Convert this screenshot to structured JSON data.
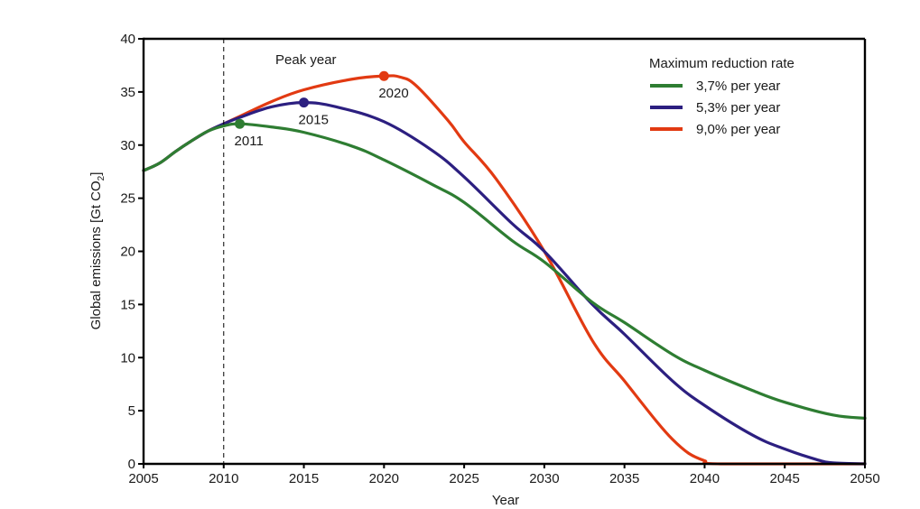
{
  "chart_data": {
    "type": "line",
    "title": "",
    "xlabel": "Year",
    "ylabel": "Global emissions [Gt CO2]",
    "ylabel_main": "Global emissions [Gt CO",
    "ylabel_sub": "2",
    "ylabel_close": "]",
    "xlim": [
      2005,
      2050
    ],
    "ylim": [
      0,
      40
    ],
    "x_ticks": [
      2005,
      2010,
      2015,
      2020,
      2025,
      2030,
      2035,
      2040,
      2045,
      2050
    ],
    "x_tick_labels": [
      "2005",
      "2010",
      "2015",
      "2020",
      "2025",
      "2030",
      "2035",
      "2040",
      "2045",
      "2050"
    ],
    "y_ticks": [
      0,
      5,
      10,
      15,
      20,
      25,
      30,
      35,
      40
    ],
    "y_tick_labels": [
      "0",
      "5",
      "10",
      "15",
      "20",
      "25",
      "30",
      "35",
      "40"
    ],
    "grid": false,
    "reference_line": {
      "x": 2010,
      "style": "dashed"
    },
    "annotations": {
      "peak_title": "Peak year",
      "peaks": [
        {
          "series": 0,
          "x": 2011,
          "y": 32.0,
          "label": "2011"
        },
        {
          "series": 1,
          "x": 2015,
          "y": 34.0,
          "label": "2015"
        },
        {
          "series": 2,
          "x": 2020,
          "y": 36.5,
          "label": "2020"
        }
      ]
    },
    "legend": {
      "title": "Maximum reduction rate",
      "position": "top-right"
    },
    "series": [
      {
        "name": "3,7% per year",
        "color": "#2e7d32",
        "x": [
          2005,
          2006,
          2007,
          2008,
          2009,
          2010,
          2011,
          2013,
          2015,
          2018,
          2020,
          2023,
          2025,
          2028,
          2030,
          2033,
          2035,
          2038,
          2040,
          2043,
          2045,
          2048,
          2050
        ],
        "y": [
          27.6,
          28.3,
          29.4,
          30.4,
          31.3,
          31.8,
          32.0,
          31.7,
          31.2,
          29.9,
          28.6,
          26.3,
          24.6,
          21.0,
          19.0,
          15.2,
          13.3,
          10.3,
          8.8,
          6.9,
          5.8,
          4.6,
          4.3
        ]
      },
      {
        "name": "5,3% per year",
        "color": "#2c1f80",
        "x": [
          2005,
          2006,
          2007,
          2008,
          2009,
          2010,
          2011,
          2013,
          2015,
          2017,
          2020,
          2023,
          2025,
          2028,
          2030,
          2033,
          2035,
          2038,
          2040,
          2043,
          2045,
          2047,
          2048,
          2050
        ],
        "y": [
          27.6,
          28.3,
          29.4,
          30.4,
          31.3,
          32.0,
          32.6,
          33.6,
          34.0,
          33.6,
          32.2,
          29.5,
          27.0,
          22.6,
          20.0,
          15.0,
          12.2,
          7.8,
          5.5,
          2.7,
          1.4,
          0.4,
          0.1,
          0.0
        ]
      },
      {
        "name": "9,0% per year",
        "color": "#e23a12",
        "x": [
          2005,
          2006,
          2007,
          2008,
          2009,
          2010,
          2011,
          2013,
          2015,
          2018,
          2020,
          2021,
          2022,
          2024,
          2025,
          2027,
          2030,
          2033,
          2035,
          2037,
          2038,
          2039,
          2040,
          2041,
          2050
        ],
        "y": [
          27.6,
          28.3,
          29.4,
          30.4,
          31.3,
          32.0,
          32.7,
          34.1,
          35.2,
          36.2,
          36.5,
          36.4,
          35.6,
          32.3,
          30.3,
          26.8,
          20.0,
          11.6,
          7.8,
          4.0,
          2.3,
          1.0,
          0.3,
          0.0,
          0.0
        ]
      }
    ]
  }
}
